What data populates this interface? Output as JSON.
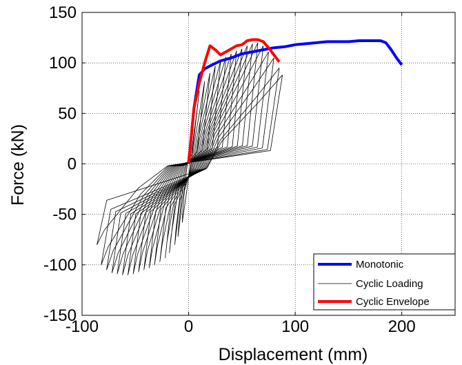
{
  "chart_data": {
    "type": "line",
    "title": "",
    "xlabel": "Displacement (mm)",
    "ylabel": "Force (kN)",
    "xlim": [
      -100,
      250
    ],
    "ylim": [
      -150,
      150
    ],
    "x_ticks": [
      -100,
      0,
      100,
      200
    ],
    "y_ticks": [
      -150,
      -100,
      -50,
      0,
      50,
      100,
      150
    ],
    "x_tick_labels": [
      "-100",
      "0",
      "100",
      "200"
    ],
    "y_tick_labels": [
      "-150",
      "-100",
      "-50",
      "0",
      "50",
      "100",
      "150"
    ],
    "grid": true,
    "legend_position": "bottom-right",
    "series": [
      {
        "name": "Monotonic",
        "color": "#0000ff",
        "x": [
          0,
          5,
          10,
          15,
          20,
          30,
          40,
          50,
          60,
          70,
          80,
          90,
          100,
          110,
          120,
          130,
          140,
          150,
          160,
          170,
          180,
          185,
          190,
          195,
          200
        ],
        "y": [
          0,
          55,
          88,
          94,
          97,
          102,
          105,
          109,
          111,
          113,
          115,
          116,
          118,
          119,
          120,
          121,
          121,
          121,
          122,
          122,
          122,
          120,
          113,
          105,
          98
        ]
      },
      {
        "name": "Cyclic Loading",
        "color": "#000000",
        "loops": [
          {
            "dpos": 6,
            "fpos": 58,
            "dneg": -6,
            "fneg": -58
          },
          {
            "dpos": 10,
            "fpos": 72,
            "dneg": -10,
            "fneg": -72
          },
          {
            "dpos": 15,
            "fpos": 82,
            "dneg": -13,
            "fneg": -80
          },
          {
            "dpos": 20,
            "fpos": 90,
            "dneg": -18,
            "fneg": -88
          },
          {
            "dpos": 25,
            "fpos": 97,
            "dneg": -22,
            "fneg": -93
          },
          {
            "dpos": 30,
            "fpos": 102,
            "dneg": -27,
            "fneg": -97
          },
          {
            "dpos": 35,
            "fpos": 106,
            "dneg": -32,
            "fneg": -100
          },
          {
            "dpos": 40,
            "fpos": 109,
            "dneg": -37,
            "fneg": -103
          },
          {
            "dpos": 45,
            "fpos": 112,
            "dneg": -42,
            "fneg": -105
          },
          {
            "dpos": 50,
            "fpos": 114,
            "dneg": -47,
            "fneg": -107
          },
          {
            "dpos": 55,
            "fpos": 117,
            "dneg": -52,
            "fneg": -109
          },
          {
            "dpos": 60,
            "fpos": 119,
            "dneg": -57,
            "fneg": -110
          },
          {
            "dpos": 65,
            "fpos": 120,
            "dneg": -62,
            "fneg": -110
          },
          {
            "dpos": 70,
            "fpos": 117,
            "dneg": -67,
            "fneg": -109
          },
          {
            "dpos": 75,
            "fpos": 111,
            "dneg": -72,
            "fneg": -108
          },
          {
            "dpos": 80,
            "fpos": 105,
            "dneg": -77,
            "fneg": -105
          },
          {
            "dpos": 85,
            "fpos": 95,
            "dneg": -82,
            "fneg": -100
          },
          {
            "dpos": 88,
            "fpos": 88,
            "dneg": -86,
            "fneg": -80
          }
        ]
      },
      {
        "name": "Cyclic Envelope",
        "color": "#ff0000",
        "x": [
          0,
          5,
          10,
          15,
          20,
          25,
          30,
          35,
          40,
          45,
          50,
          55,
          60,
          65,
          70,
          75,
          80,
          85
        ],
        "y": [
          0,
          55,
          80,
          100,
          117,
          113,
          108,
          111,
          114,
          117,
          118,
          122,
          123,
          123,
          121,
          115,
          108,
          101
        ]
      }
    ]
  }
}
